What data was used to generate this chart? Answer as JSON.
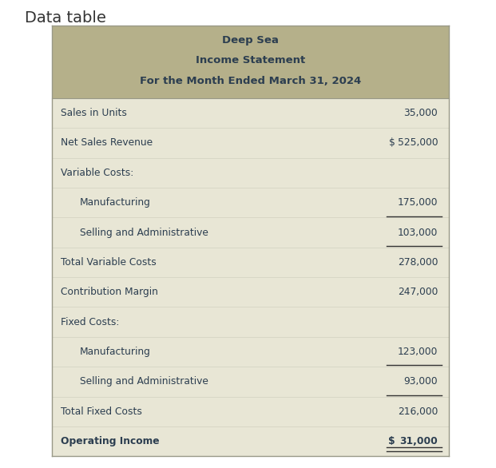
{
  "title_line1": "Deep Sea",
  "title_line2": "Income Statement",
  "title_line3": "For the Month Ended March 31, 2024",
  "header_bg": "#b5b08a",
  "row_bg_light": "#e8e6d5",
  "border_color": "#999988",
  "text_color": "#2c3e50",
  "outer_bg": "#ffffff",
  "rows": [
    {
      "label": "Sales in Units",
      "indent": 0,
      "dollar": "",
      "value": "35,000",
      "bold": false,
      "underline_above": false,
      "double_underline": false
    },
    {
      "label": "Net Sales Revenue",
      "indent": 0,
      "dollar": "$",
      "value": "525,000",
      "bold": false,
      "underline_above": false,
      "double_underline": false
    },
    {
      "label": "Variable Costs:",
      "indent": 0,
      "dollar": "",
      "value": "",
      "bold": false,
      "underline_above": false,
      "double_underline": false
    },
    {
      "label": "Manufacturing",
      "indent": 1,
      "dollar": "",
      "value": "175,000",
      "bold": false,
      "underline_above": false,
      "double_underline": false
    },
    {
      "label": "Selling and Administrative",
      "indent": 1,
      "dollar": "",
      "value": "103,000",
      "bold": false,
      "underline_above": true,
      "double_underline": false
    },
    {
      "label": "Total Variable Costs",
      "indent": 0,
      "dollar": "",
      "value": "278,000",
      "bold": false,
      "underline_above": true,
      "double_underline": false
    },
    {
      "label": "Contribution Margin",
      "indent": 0,
      "dollar": "",
      "value": "247,000",
      "bold": false,
      "underline_above": false,
      "double_underline": false
    },
    {
      "label": "Fixed Costs:",
      "indent": 0,
      "dollar": "",
      "value": "",
      "bold": false,
      "underline_above": false,
      "double_underline": false
    },
    {
      "label": "Manufacturing",
      "indent": 1,
      "dollar": "",
      "value": "123,000",
      "bold": false,
      "underline_above": false,
      "double_underline": false
    },
    {
      "label": "Selling and Administrative",
      "indent": 1,
      "dollar": "",
      "value": "93,000",
      "bold": false,
      "underline_above": true,
      "double_underline": false
    },
    {
      "label": "Total Fixed Costs",
      "indent": 0,
      "dollar": "",
      "value": "216,000",
      "bold": false,
      "underline_above": true,
      "double_underline": false
    },
    {
      "label": "Operating Income",
      "indent": 0,
      "dollar": "$",
      "value": "31,000",
      "bold": true,
      "underline_above": false,
      "double_underline": true
    }
  ],
  "fig_width": 6.21,
  "fig_height": 5.86,
  "dpi": 100
}
